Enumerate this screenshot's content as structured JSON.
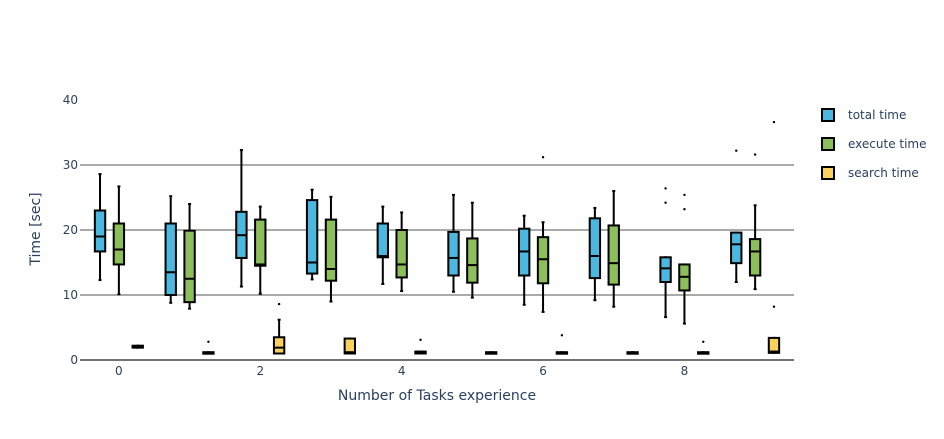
{
  "chart_data": {
    "type": "box",
    "title": "",
    "xlabel": "Number of Tasks experience",
    "ylabel": "Time [sec]",
    "xlim": [
      -0.55,
      9.55
    ],
    "ylim": [
      0,
      40
    ],
    "x_ticks": [
      0,
      2,
      4,
      6,
      8
    ],
    "y_ticks": [
      0,
      10,
      20,
      30,
      40
    ],
    "grid": "horizontal",
    "legend_position": "right",
    "series": [
      {
        "name": "total time",
        "color": "#4bb8e0",
        "boxes": [
          {
            "x": 0,
            "q1": 16.7,
            "median": 19.0,
            "q3": 23.0,
            "low": 12.3,
            "high": 28.6,
            "outliers": []
          },
          {
            "x": 1,
            "q1": 10.0,
            "median": 13.5,
            "q3": 21.0,
            "low": 8.8,
            "high": 25.2,
            "outliers": []
          },
          {
            "x": 2,
            "q1": 15.7,
            "median": 19.2,
            "q3": 22.8,
            "low": 11.3,
            "high": 32.3,
            "outliers": []
          },
          {
            "x": 3,
            "q1": 13.3,
            "median": 15.0,
            "q3": 24.6,
            "low": 12.4,
            "high": 26.2,
            "outliers": []
          },
          {
            "x": 4,
            "q1": 15.8,
            "median": 16.0,
            "q3": 21.0,
            "low": 11.7,
            "high": 23.6,
            "outliers": []
          },
          {
            "x": 5,
            "q1": 13.0,
            "median": 15.7,
            "q3": 19.7,
            "low": 10.5,
            "high": 25.4,
            "outliers": []
          },
          {
            "x": 6,
            "q1": 13.0,
            "median": 16.7,
            "q3": 20.2,
            "low": 8.5,
            "high": 22.2,
            "outliers": []
          },
          {
            "x": 7,
            "q1": 12.6,
            "median": 16.0,
            "q3": 21.8,
            "low": 9.2,
            "high": 23.4,
            "outliers": []
          },
          {
            "x": 8,
            "q1": 12.0,
            "median": 14.1,
            "q3": 15.8,
            "low": 6.6,
            "high": 15.8,
            "outliers": [
              24.2,
              26.4
            ]
          },
          {
            "x": 9,
            "q1": 14.9,
            "median": 17.8,
            "q3": 19.6,
            "low": 12.0,
            "high": 19.6,
            "outliers": [
              32.2
            ]
          }
        ]
      },
      {
        "name": "execute time",
        "color": "#8cbf5a",
        "boxes": [
          {
            "x": 0,
            "q1": 14.7,
            "median": 17.0,
            "q3": 21.0,
            "low": 10.1,
            "high": 26.7,
            "outliers": []
          },
          {
            "x": 1,
            "q1": 8.9,
            "median": 12.5,
            "q3": 19.9,
            "low": 7.9,
            "high": 24.0,
            "outliers": []
          },
          {
            "x": 2,
            "q1": 14.5,
            "median": 14.7,
            "q3": 21.6,
            "low": 10.2,
            "high": 23.6,
            "outliers": []
          },
          {
            "x": 3,
            "q1": 12.2,
            "median": 14.0,
            "q3": 21.6,
            "low": 9.0,
            "high": 25.1,
            "outliers": []
          },
          {
            "x": 4,
            "q1": 12.7,
            "median": 14.7,
            "q3": 20.0,
            "low": 10.6,
            "high": 22.7,
            "outliers": []
          },
          {
            "x": 5,
            "q1": 11.9,
            "median": 14.6,
            "q3": 18.7,
            "low": 9.6,
            "high": 24.2,
            "outliers": []
          },
          {
            "x": 6,
            "q1": 11.8,
            "median": 15.5,
            "q3": 18.9,
            "low": 7.4,
            "high": 21.2,
            "outliers": [
              31.2
            ]
          },
          {
            "x": 7,
            "q1": 11.6,
            "median": 14.9,
            "q3": 20.7,
            "low": 8.2,
            "high": 26.0,
            "outliers": []
          },
          {
            "x": 8,
            "q1": 10.7,
            "median": 12.8,
            "q3": 14.7,
            "low": 5.6,
            "high": 14.7,
            "outliers": [
              23.2,
              25.4
            ]
          },
          {
            "x": 9,
            "q1": 13.0,
            "median": 16.7,
            "q3": 18.6,
            "low": 10.9,
            "high": 23.8,
            "outliers": [
              31.6
            ]
          }
        ]
      },
      {
        "name": "search time",
        "color": "#f9d15c",
        "boxes": [
          {
            "x": 0,
            "q1": 1.9,
            "median": 2.0,
            "q3": 2.2,
            "low": 1.9,
            "high": 2.2,
            "outliers": []
          },
          {
            "x": 1,
            "q1": 1.0,
            "median": 1.1,
            "q3": 1.2,
            "low": 1.0,
            "high": 1.2,
            "outliers": [
              2.8
            ]
          },
          {
            "x": 2,
            "q1": 1.0,
            "median": 1.9,
            "q3": 3.5,
            "low": 1.0,
            "high": 6.2,
            "outliers": [
              8.6
            ]
          },
          {
            "x": 3,
            "q1": 1.0,
            "median": 1.2,
            "q3": 3.3,
            "low": 1.0,
            "high": 3.3,
            "outliers": []
          },
          {
            "x": 4,
            "q1": 1.0,
            "median": 1.1,
            "q3": 1.3,
            "low": 1.0,
            "high": 1.3,
            "outliers": [
              3.1
            ]
          },
          {
            "x": 5,
            "q1": 1.0,
            "median": 1.1,
            "q3": 1.2,
            "low": 1.0,
            "high": 1.2,
            "outliers": []
          },
          {
            "x": 6,
            "q1": 1.0,
            "median": 1.1,
            "q3": 1.2,
            "low": 1.0,
            "high": 1.2,
            "outliers": [
              3.8
            ]
          },
          {
            "x": 7,
            "q1": 1.0,
            "median": 1.1,
            "q3": 1.2,
            "low": 1.0,
            "high": 1.2,
            "outliers": []
          },
          {
            "x": 8,
            "q1": 1.0,
            "median": 1.1,
            "q3": 1.2,
            "low": 1.0,
            "high": 1.2,
            "outliers": [
              2.8
            ]
          },
          {
            "x": 9,
            "q1": 1.1,
            "median": 1.3,
            "q3": 3.4,
            "low": 1.1,
            "high": 3.4,
            "outliers": [
              8.2,
              36.6
            ]
          }
        ]
      }
    ]
  }
}
